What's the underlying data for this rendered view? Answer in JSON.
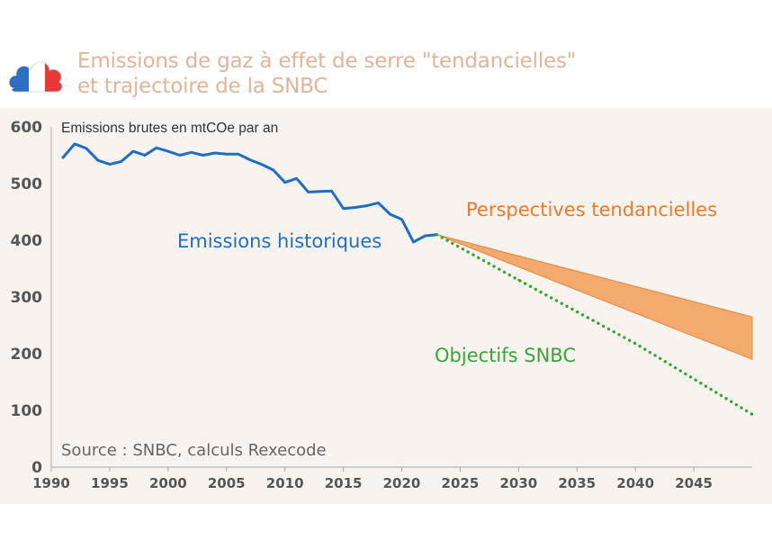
{
  "title": {
    "line1": "Emissions de gaz à effet de serre \"tendancielles\"",
    "line2": "et trajectoire de la SNBC"
  },
  "logo": {
    "icon": "french-flag-cloud-icon",
    "colors": [
      "#2b6fc4",
      "#ffffff",
      "#e63a3a"
    ]
  },
  "chart_data": {
    "type": "line",
    "ylabel": "Emissions brutes en mtCOe par an",
    "source": "Source : SNBC, calculs Rexecode",
    "xlim": [
      1990,
      2050
    ],
    "ylim": [
      0,
      600
    ],
    "xticks": [
      "1990",
      "1995",
      "2000",
      "2005",
      "2010",
      "2015",
      "2020",
      "2025",
      "2030",
      "2035",
      "2040",
      "2045"
    ],
    "yticks": [
      "0",
      "100",
      "200",
      "300",
      "400",
      "500",
      "600"
    ],
    "grid": false,
    "background": "#f8f3ef",
    "series": [
      {
        "name": "Emissions historiques",
        "color": "#1f6ec1",
        "style": "solid",
        "x": [
          1991,
          1992,
          1993,
          1994,
          1995,
          1996,
          1997,
          1998,
          1999,
          2000,
          2001,
          2002,
          2003,
          2004,
          2005,
          2006,
          2007,
          2008,
          2009,
          2010,
          2011,
          2012,
          2013,
          2014,
          2015,
          2016,
          2017,
          2018,
          2019,
          2020,
          2021,
          2022,
          2023
        ],
        "y": [
          546,
          570,
          562,
          541,
          534,
          539,
          557,
          550,
          563,
          557,
          550,
          555,
          550,
          554,
          552,
          552,
          542,
          534,
          524,
          502,
          509,
          485,
          486,
          487,
          456,
          458,
          461,
          466,
          446,
          437,
          397,
          408,
          410
        ]
      },
      {
        "name": "Objectifs SNBC",
        "color": "#3aa43a",
        "style": "dotted",
        "x": [
          2023,
          2030,
          2040,
          2050
        ],
        "y": [
          410,
          330,
          218,
          93
        ]
      },
      {
        "name": "Perspectives tendancielles",
        "color": "#f2aa6e",
        "type": "band",
        "x": [
          2023,
          2050
        ],
        "upper": [
          410,
          265
        ],
        "lower": [
          410,
          190
        ]
      }
    ]
  }
}
